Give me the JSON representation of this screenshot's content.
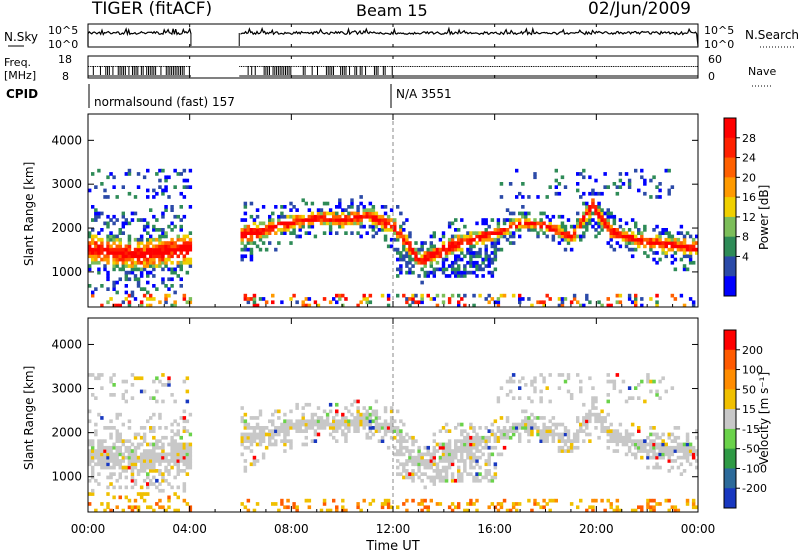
{
  "header": {
    "title": "TIGER (fitACF)",
    "beam": "Beam 15",
    "date": "02/Jun/2009"
  },
  "status_panels": {
    "nsky_label": "N.Sky",
    "nsearch_label": "N.Search",
    "count_ticks": [
      "10^5",
      "10^0"
    ],
    "freq_label_line1": "Freq.",
    "freq_label_line2": "[MHz]",
    "freq_ticks": [
      18,
      8
    ],
    "nave_label": "Nave",
    "nave_ticks": [
      60,
      0
    ],
    "cpid_label": "CPID",
    "cpid_segments": [
      {
        "text": "normalsound (fast) 157",
        "start_hour": 0
      },
      {
        "text": "N/A 3551",
        "start_hour": 12
      }
    ]
  },
  "chart_data": [
    {
      "type": "heatmap",
      "panel": "power",
      "xlabel": "",
      "ylabel": "Slant Range [km]",
      "xlim": [
        0,
        24
      ],
      "ylim": [
        200,
        4600
      ],
      "yticks": [
        1000,
        2000,
        3000,
        4000
      ],
      "colorbar": {
        "label": "Power [dB]",
        "ticks": [
          4,
          8,
          12,
          16,
          20,
          24,
          28
        ],
        "colors": [
          "#0000ff",
          "#2b4aa8",
          "#2e8b57",
          "#7cbe5a",
          "#f0d000",
          "#ff9a00",
          "#ff6000",
          "#ff2000",
          "#ff0000"
        ]
      },
      "data_gaps_hours": [
        [
          4.05,
          5.95
        ]
      ],
      "main_echo_band_km": [
        {
          "hour": 0.0,
          "center": 1500,
          "width": 900
        },
        {
          "hour": 1.0,
          "center": 1400,
          "width": 900
        },
        {
          "hour": 2.0,
          "center": 1350,
          "width": 900
        },
        {
          "hour": 3.0,
          "center": 1450,
          "width": 1000
        },
        {
          "hour": 4.0,
          "center": 1500,
          "width": 900
        },
        {
          "hour": 6.0,
          "center": 1800,
          "width": 700
        },
        {
          "hour": 7.0,
          "center": 1950,
          "width": 500
        },
        {
          "hour": 8.0,
          "center": 2100,
          "width": 450
        },
        {
          "hour": 9.0,
          "center": 2200,
          "width": 400
        },
        {
          "hour": 10.0,
          "center": 2150,
          "width": 450
        },
        {
          "hour": 11.0,
          "center": 2250,
          "width": 450
        },
        {
          "hour": 12.0,
          "center": 2000,
          "width": 500
        },
        {
          "hour": 13.0,
          "center": 1200,
          "width": 500
        },
        {
          "hour": 14.0,
          "center": 1500,
          "width": 600
        },
        {
          "hour": 15.0,
          "center": 1700,
          "width": 450
        },
        {
          "hour": 16.0,
          "center": 1850,
          "width": 400
        },
        {
          "hour": 17.0,
          "center": 2100,
          "width": 350
        },
        {
          "hour": 18.0,
          "center": 2000,
          "width": 350
        },
        {
          "hour": 19.0,
          "center": 1750,
          "width": 350
        },
        {
          "hour": 19.8,
          "center": 2500,
          "width": 600
        },
        {
          "hour": 20.5,
          "center": 1900,
          "width": 400
        },
        {
          "hour": 21.5,
          "center": 1700,
          "width": 400
        },
        {
          "hour": 22.5,
          "center": 1600,
          "width": 500
        },
        {
          "hour": 24.0,
          "center": 1500,
          "width": 500
        }
      ]
    },
    {
      "type": "heatmap",
      "panel": "velocity",
      "xlabel": "Time UT",
      "ylabel": "Slant Range [km]",
      "xlim": [
        0,
        24
      ],
      "ylim": [
        200,
        4600
      ],
      "xticks": [
        "00:00",
        "04:00",
        "08:00",
        "12:00",
        "16:00",
        "20:00",
        "00:00"
      ],
      "yticks": [
        1000,
        2000,
        3000,
        4000
      ],
      "colorbar": {
        "label": "Velocity [m s⁻¹]",
        "ticks": [
          200,
          100,
          50,
          15,
          -15,
          -50,
          -100,
          -200
        ],
        "colors": [
          "#1838c0",
          "#2c6a9a",
          "#2f9a45",
          "#6ad24a",
          "#c8c8c8",
          "#f0c000",
          "#ff8c00",
          "#ff5a00",
          "#ff0000"
        ]
      }
    }
  ]
}
